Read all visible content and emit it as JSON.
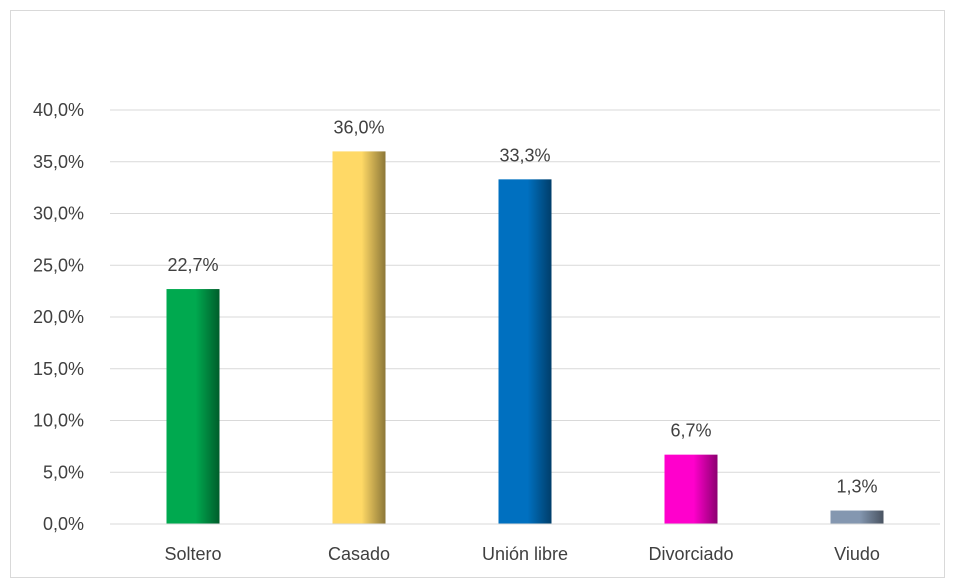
{
  "chart_data": {
    "type": "bar",
    "categories": [
      "Soltero",
      "Casado",
      "Unión libre",
      "Divorciado",
      "Viudo"
    ],
    "values": [
      22.7,
      36.0,
      33.3,
      6.7,
      1.3
    ],
    "data_labels": [
      "22,7%",
      "36,0%",
      "33,3%",
      "6,7%",
      "1,3%"
    ],
    "y_ticks": [
      0,
      5,
      10,
      15,
      20,
      25,
      30,
      35,
      40
    ],
    "y_tick_labels": [
      "0,0%",
      "5,0%",
      "10,0%",
      "15,0%",
      "20,0%",
      "25,0%",
      "30,0%",
      "35,0%",
      "40,0%"
    ],
    "ylim": [
      0,
      40
    ],
    "grid": true,
    "legend": "none",
    "title": "",
    "xlabel": "",
    "ylabel": "",
    "colors": [
      "#00a94f",
      "#ffd966",
      "#0070c0",
      "#ff00cc",
      "#8497b0"
    ]
  }
}
